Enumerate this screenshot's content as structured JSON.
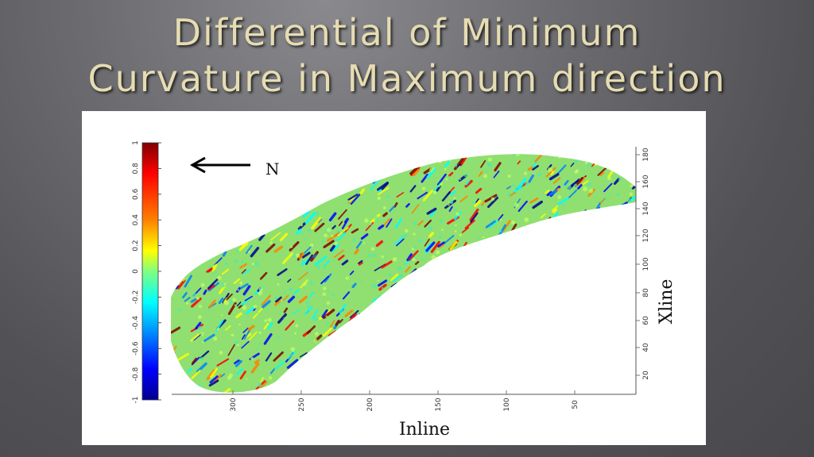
{
  "slide": {
    "title_line1": "Differential of Minimum",
    "title_line2": "Curvature in Maximum direction"
  },
  "figure": {
    "north_label": "N",
    "x_axis_label": "Inline",
    "y_axis_label": "Xline",
    "colorbar_ticks": [
      "1",
      "0.8",
      "0.6",
      "0.4",
      "0.2",
      "0",
      "-0.2",
      "-0.4",
      "-0.6",
      "-0.8",
      "-1"
    ],
    "x_ticks": [
      "300",
      "250",
      "200",
      "150",
      "100",
      "50"
    ],
    "y_ticks": [
      "180",
      "160",
      "140",
      "120",
      "100",
      "80",
      "60",
      "40",
      "20"
    ],
    "colormap": [
      "#00008f",
      "#0000ff",
      "#0080ff",
      "#00ffff",
      "#80ff80",
      "#ffff00",
      "#ff8000",
      "#ff0000",
      "#800000"
    ],
    "background_color": "#8fe070"
  }
}
